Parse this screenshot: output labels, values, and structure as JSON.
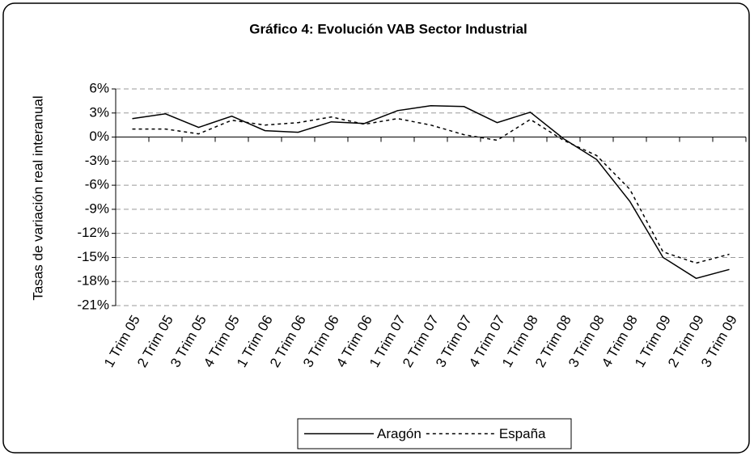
{
  "chart_data": {
    "type": "line",
    "title": "Gráfico 4: Evolución VAB Sector Industrial",
    "y_label": "Tasas de variación real interanual",
    "categories": [
      "1 Trim 05",
      "2 Trim 05",
      "3 Trim 05",
      "4 Trim 05",
      "1 Trim 06",
      "2 Trim 06",
      "3 Trim 06",
      "4 Trim 06",
      "1 Trim 07",
      "2 Trim 07",
      "3 Trim 07",
      "4 Trim 07",
      "1 Trim 08",
      "2 Trim 08",
      "3 Trim 08",
      "4 Trim 08",
      "1 Trim 09",
      "2 Trim 09",
      "3 Trim 09"
    ],
    "series": [
      {
        "name": "Aragón",
        "color": "#000000",
        "dash": "solid",
        "values": [
          2.3,
          2.9,
          1.2,
          2.6,
          0.8,
          0.6,
          1.9,
          1.7,
          3.3,
          3.9,
          3.8,
          1.8,
          3.1,
          -0.2,
          -2.8,
          -8.0,
          -15.0,
          -17.6,
          -16.5
        ]
      },
      {
        "name": "España",
        "color": "#000000",
        "dash": "dashed",
        "values": [
          1.0,
          1.0,
          0.4,
          2.1,
          1.5,
          1.8,
          2.5,
          1.6,
          2.3,
          1.5,
          0.3,
          -0.4,
          2.2,
          -0.4,
          -2.3,
          -6.5,
          -14.3,
          -15.7,
          -14.6
        ]
      }
    ],
    "ylim": [
      -21,
      6
    ],
    "yticks": [
      {
        "value": 6,
        "label": "6%"
      },
      {
        "value": 3,
        "label": "3%"
      },
      {
        "value": 0,
        "label": "0%"
      },
      {
        "value": -3,
        "label": "-3%"
      },
      {
        "value": -6,
        "label": "-6%"
      },
      {
        "value": -9,
        "label": "-9%"
      },
      {
        "value": -12,
        "label": "-12%"
      },
      {
        "value": -15,
        "label": "-15%"
      },
      {
        "value": -18,
        "label": "-18%"
      },
      {
        "value": -21,
        "label": "-21%"
      }
    ],
    "grid": true,
    "legend": "bottom"
  }
}
